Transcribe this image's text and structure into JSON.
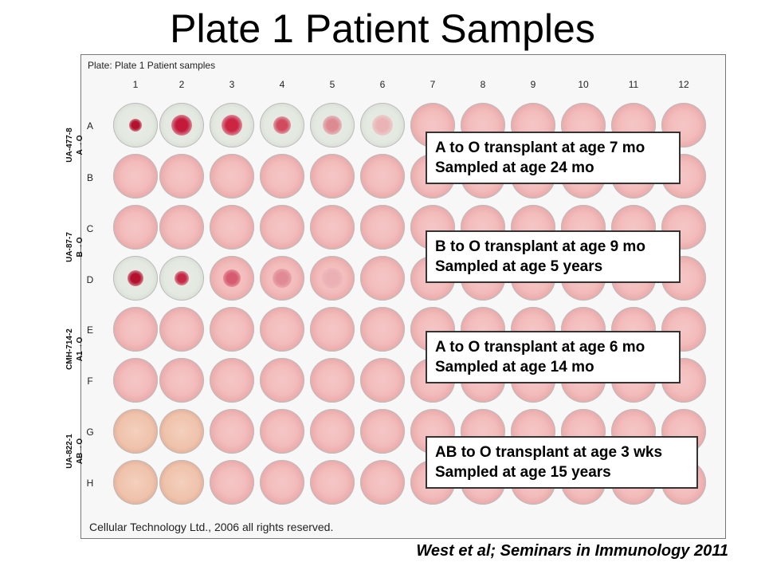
{
  "title": "Plate 1 Patient Samples",
  "plate_label": "Plate: Plate 1 Patient samples",
  "columns": [
    "1",
    "2",
    "3",
    "4",
    "5",
    "6",
    "7",
    "8",
    "9",
    "10",
    "11",
    "12"
  ],
  "rows": [
    "A",
    "B",
    "C",
    "D",
    "E",
    "F",
    "G",
    "H"
  ],
  "samples": [
    {
      "id": "UA-477-8",
      "transplant": "A→O"
    },
    {
      "id": "UA-87-7",
      "transplant": "B→O"
    },
    {
      "id": "CMH-714-2",
      "transplant": "A1→O"
    },
    {
      "id": "UA-822-1",
      "transplant": "AB→O"
    }
  ],
  "annotations": [
    {
      "line1": "A to O transplant at age 7 mo",
      "line2": "Sampled at age 24 mo"
    },
    {
      "line1": "B to O transplant at age 9 mo",
      "line2": "Sampled at age 5 years"
    },
    {
      "line1": "A to O transplant at age 6 mo",
      "line2": "Sampled at age 14 mo"
    },
    {
      "line1": "AB to O transplant at age 3 wks",
      "line2": "Sampled at age 15 years"
    }
  ],
  "copyright": "Cellular Technology Ltd., 2006 all rights reserved.",
  "citation": "West et al; Seminars in Immunology 2011",
  "colors": {
    "well_pink": "#f3bcbc",
    "spot_red": "#c3193a",
    "plate_bg": "#f7f7f7"
  }
}
